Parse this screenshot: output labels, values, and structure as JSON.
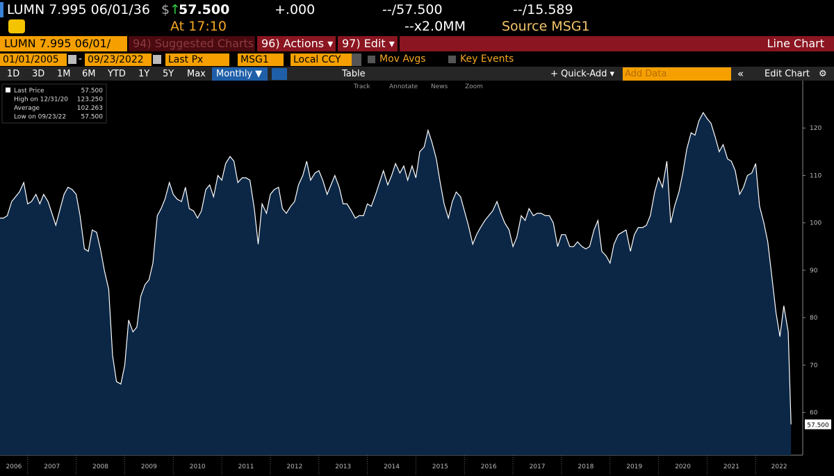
{
  "header": {
    "ticker": "LUMN 7.995 06/01/36",
    "currency": "$",
    "arrow": "↑",
    "price": "57.500",
    "change": "+.000",
    "bid_ask": "--/57.500",
    "yield": "--/15.589",
    "time": "At 17:10",
    "size": "--x2.0MM",
    "source": "Source MSG1"
  },
  "toolbar": {
    "security": "LUMN 7.995 06/01/",
    "suggested": "94) Suggested Charts",
    "actions": "96) Actions ▾",
    "edit": "97) Edit ▾",
    "chart_type": "Line Chart"
  },
  "settings": {
    "start": "01/01/2005",
    "dash": "-",
    "end": "09/23/2022",
    "field": "Last Px",
    "source": "MSG1",
    "currency": "Local CCY",
    "mov_avgs": "Mov Avgs",
    "key_events": "Key Events"
  },
  "periods": [
    "1D",
    "3D",
    "1M",
    "6M",
    "YTD",
    "1Y",
    "5Y",
    "Max"
  ],
  "frequency": "Monthly ▼",
  "table": "Table",
  "quick_add": "+ Quick-Add ▾",
  "add_data": "Add Data",
  "collapse": "«",
  "edit_chart": "Edit Chart",
  "tools": [
    "Track",
    "Annotate",
    "News",
    "Zoom"
  ],
  "legend_panel": {
    "rows": [
      [
        "Last Price",
        "57.500"
      ],
      [
        "High on 12/31/20",
        "123.250"
      ],
      [
        "Average",
        "102.263"
      ],
      [
        "Low on 09/23/22",
        "57.500"
      ]
    ]
  },
  "chart_data": {
    "type": "line",
    "area_color": "#0c2746",
    "x": [
      2006.42,
      2006.5,
      2006.58,
      2006.67,
      2006.75,
      2006.83,
      2006.92,
      2007,
      2007.08,
      2007.17,
      2007.25,
      2007.33,
      2007.42,
      2007.5,
      2007.58,
      2007.67,
      2007.75,
      2007.83,
      2007.92,
      2008,
      2008.08,
      2008.17,
      2008.25,
      2008.33,
      2008.42,
      2008.5,
      2008.58,
      2008.67,
      2008.75,
      2008.83,
      2008.92,
      2009,
      2009.08,
      2009.17,
      2009.25,
      2009.33,
      2009.42,
      2009.5,
      2009.58,
      2009.67,
      2009.75,
      2009.83,
      2009.92,
      2010,
      2010.08,
      2010.17,
      2010.25,
      2010.33,
      2010.42,
      2010.5,
      2010.58,
      2010.67,
      2010.75,
      2010.83,
      2010.92,
      2011,
      2011.08,
      2011.17,
      2011.25,
      2011.33,
      2011.42,
      2011.5,
      2011.58,
      2011.67,
      2011.75,
      2011.83,
      2011.92,
      2012,
      2012.08,
      2012.17,
      2012.25,
      2012.33,
      2012.42,
      2012.5,
      2012.58,
      2012.67,
      2012.75,
      2012.83,
      2012.92,
      2013,
      2013.08,
      2013.17,
      2013.25,
      2013.33,
      2013.42,
      2013.5,
      2013.58,
      2013.67,
      2013.75,
      2013.83,
      2013.92,
      2014,
      2014.08,
      2014.17,
      2014.25,
      2014.33,
      2014.42,
      2014.5,
      2014.58,
      2014.67,
      2014.75,
      2014.83,
      2014.92,
      2015,
      2015.08,
      2015.17,
      2015.25,
      2015.33,
      2015.42,
      2015.5,
      2015.58,
      2015.67,
      2015.75,
      2015.83,
      2015.92,
      2016,
      2016.08,
      2016.17,
      2016.25,
      2016.33,
      2016.42,
      2016.5,
      2016.58,
      2016.67,
      2016.75,
      2016.83,
      2016.92,
      2017,
      2017.08,
      2017.17,
      2017.25,
      2017.33,
      2017.42,
      2017.5,
      2017.58,
      2017.67,
      2017.75,
      2017.83,
      2017.92,
      2018,
      2018.08,
      2018.17,
      2018.25,
      2018.33,
      2018.42,
      2018.5,
      2018.58,
      2018.67,
      2018.75,
      2018.83,
      2018.92,
      2019,
      2019.08,
      2019.17,
      2019.25,
      2019.33,
      2019.42,
      2019.5,
      2019.58,
      2019.67,
      2019.75,
      2019.83,
      2019.92,
      2020,
      2020.08,
      2020.17,
      2020.25,
      2020.33,
      2020.42,
      2020.5,
      2020.58,
      2020.67,
      2020.75,
      2020.83,
      2020.92,
      2021,
      2021.08,
      2021.17,
      2021.25,
      2021.33,
      2021.42,
      2021.5,
      2021.58,
      2021.67,
      2021.75,
      2021.83,
      2021.92,
      2022,
      2022.08,
      2022.17,
      2022.25,
      2022.33,
      2022.42,
      2022.5,
      2022.58,
      2022.67,
      2022.73
    ],
    "series": [
      {
        "name": "Last Price",
        "color": "#ffffff",
        "values": [
          101,
          101,
          101.5,
          104.5,
          105.5,
          106.5,
          108.5,
          104,
          104.5,
          106,
          104,
          106,
          104.5,
          102,
          99.5,
          103,
          106,
          107.5,
          107,
          106,
          101.5,
          94.5,
          94,
          98.5,
          98,
          94.5,
          90,
          86,
          72,
          66.5,
          66,
          70,
          79.5,
          77,
          78,
          84.5,
          87,
          88,
          91.5,
          101.5,
          103,
          105,
          108.5,
          106,
          105,
          104.5,
          107.5,
          103,
          102.5,
          101,
          102.5,
          107,
          108,
          105.5,
          110,
          109,
          112.5,
          114,
          113,
          108.5,
          109.5,
          109.5,
          109,
          103,
          95.5,
          104,
          102,
          106,
          107,
          107.5,
          103,
          102,
          103.5,
          104.5,
          108,
          110,
          113,
          109,
          110.5,
          111,
          109,
          106,
          108,
          110,
          107.5,
          104,
          104,
          102.5,
          101,
          101.5,
          101.5,
          104,
          103.5,
          106,
          108.5,
          111,
          108,
          110,
          112.5,
          110.5,
          112,
          109,
          112,
          109.5,
          115,
          116,
          119.5,
          117,
          113.5,
          108.5,
          104,
          101,
          104.5,
          106.5,
          105.5,
          102.5,
          99.5,
          95.5,
          97.5,
          99,
          100.5,
          101.5,
          102.5,
          104.5,
          102,
          100,
          98.5,
          95,
          97,
          101.5,
          100.5,
          103,
          101.5,
          102,
          102,
          101.5,
          101.5,
          100,
          95,
          97.5,
          97.5,
          95,
          95,
          96,
          95,
          94.5,
          95,
          98.5,
          100.5,
          94,
          93,
          91.5,
          95.5,
          97.5,
          98,
          98.5,
          94,
          97.5,
          99,
          99,
          99.5,
          101.5,
          106.5,
          109.5,
          107.5,
          113,
          100,
          103.5,
          106.5,
          110.5,
          115.5,
          119,
          118.5,
          121.5,
          123.25,
          122,
          121,
          118,
          115,
          116.5,
          113.5,
          113,
          111,
          106,
          107.5,
          110,
          110.5,
          112.5,
          103.5,
          100,
          96,
          89,
          81,
          76,
          82.5,
          77,
          57.5
        ]
      }
    ],
    "last_label": "57.500",
    "xlim": [
      2006.43,
      2022.97
    ],
    "xticks": [
      2006,
      2007,
      2008,
      2009,
      2010,
      2011,
      2012,
      2013,
      2014,
      2015,
      2016,
      2017,
      2018,
      2019,
      2020,
      2021,
      2022
    ],
    "ylim": [
      51,
      130
    ],
    "yticks": [
      60,
      70,
      80,
      90,
      100,
      110,
      120
    ]
  }
}
